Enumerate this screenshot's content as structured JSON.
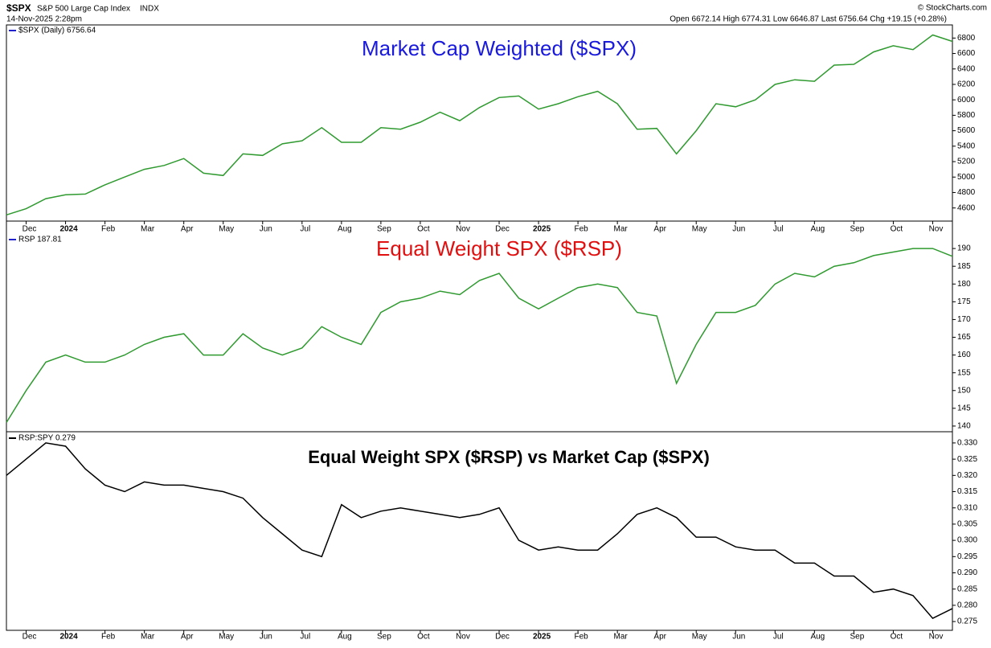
{
  "header": {
    "symbol": "$SPX",
    "name": "S&P 500 Large Cap Index",
    "exchange": "INDX",
    "date": "14-Nov-2025 2:28pm",
    "quote": "Open 6672.14 High 6774.31 Low 6646.87 Last 6756.64 Chg +19.15 (+0.28%)",
    "source": "© StockCharts.com"
  },
  "chart_data": [
    {
      "type": "line",
      "title": "Market Cap Weighted ($SPX)",
      "title_color": "#1a1adc",
      "categories": [
        null,
        "Dec",
        null,
        "2024",
        null,
        "Feb",
        null,
        "Mar",
        null,
        "Apr",
        null,
        "May",
        null,
        "Jun",
        null,
        "Jul",
        null,
        "Aug",
        null,
        "Sep",
        null,
        "Oct",
        null,
        "Nov",
        null,
        "Dec",
        null,
        "2025",
        null,
        "Feb",
        null,
        "Mar",
        null,
        "Apr",
        null,
        "May",
        null,
        "Jun",
        null,
        "Jul",
        null,
        "Aug",
        null,
        "Sep",
        null,
        "Oct",
        null,
        "Nov",
        null
      ],
      "series": [
        {
          "name": "$SPX (Daily) 6756.64",
          "color": "#2f9a2f",
          "values": [
            4510,
            4590,
            4720,
            4770,
            4780,
            4900,
            5000,
            5100,
            5150,
            5240,
            5050,
            5020,
            5300,
            5280,
            5430,
            5470,
            5640,
            5450,
            5450,
            5640,
            5620,
            5710,
            5840,
            5730,
            5900,
            6030,
            6050,
            5880,
            5950,
            6040,
            6110,
            5950,
            5620,
            5630,
            5300,
            5600,
            5950,
            5910,
            6000,
            6200,
            6260,
            6240,
            6450,
            6460,
            6620,
            6700,
            6650,
            6840,
            6757
          ]
        }
      ],
      "ylim": [
        4430,
        6970
      ],
      "yticks": [
        4600,
        4800,
        5000,
        5200,
        5400,
        5600,
        5800,
        6000,
        6200,
        6400,
        6600,
        6800
      ]
    },
    {
      "type": "line",
      "title": "Equal Weight SPX ($RSP)",
      "title_color": "#e01010",
      "series": [
        {
          "name": "RSP 187.81",
          "color": "#2f9a2f",
          "values": [
            141,
            150,
            158,
            160,
            158,
            158,
            160,
            163,
            165,
            166,
            160,
            160,
            166,
            162,
            160,
            162,
            168,
            165,
            163,
            172,
            175,
            176,
            178,
            177,
            181,
            183,
            176,
            173,
            176,
            179,
            180,
            179,
            172,
            171,
            152,
            163,
            172,
            172,
            174,
            180,
            183,
            182,
            185,
            186,
            188,
            189,
            190,
            190,
            187.81
          ]
        }
      ],
      "ylim": [
        138.4,
        194.1
      ],
      "yticks": [
        140,
        145,
        150,
        155,
        160,
        165,
        170,
        175,
        180,
        185,
        190
      ]
    },
    {
      "type": "line",
      "title": "Equal Weight SPX ($RSP) vs Market Cap ($SPX)",
      "title_color": "#000000",
      "categories": [
        null,
        "Dec",
        null,
        "2024",
        null,
        "Feb",
        null,
        "Mar",
        null,
        "Apr",
        null,
        "May",
        null,
        "Jun",
        null,
        "Jul",
        null,
        "Aug",
        null,
        "Sep",
        null,
        "Oct",
        null,
        "Nov",
        null,
        "Dec",
        null,
        "2025",
        null,
        "Feb",
        null,
        "Mar",
        null,
        "Apr",
        null,
        "May",
        null,
        "Jun",
        null,
        "Jul",
        null,
        "Aug",
        null,
        "Sep",
        null,
        "Oct",
        null,
        "Nov",
        null
      ],
      "series": [
        {
          "name": "RSP:SPY 0.279",
          "color": "#000000",
          "values": [
            0.32,
            0.325,
            0.33,
            0.329,
            0.322,
            0.317,
            0.315,
            0.318,
            0.317,
            0.317,
            0.316,
            0.315,
            0.313,
            0.307,
            0.302,
            0.297,
            0.295,
            0.311,
            0.307,
            0.309,
            0.31,
            0.309,
            0.308,
            0.307,
            0.308,
            0.31,
            0.3,
            0.297,
            0.298,
            0.297,
            0.297,
            0.302,
            0.308,
            0.31,
            0.307,
            0.301,
            0.301,
            0.298,
            0.297,
            0.297,
            0.293,
            0.293,
            0.289,
            0.289,
            0.284,
            0.285,
            0.283,
            0.276,
            0.279
          ]
        }
      ],
      "ylim": [
        0.2723,
        0.3332
      ],
      "yticks": [
        0.275,
        {
          "value": 0.28,
          "label": "0.280"
        },
        0.285,
        {
          "value": 0.29,
          "label": "0.290"
        },
        0.295,
        {
          "value": 0.3,
          "label": "0.300"
        },
        0.305,
        {
          "value": 0.31,
          "label": "0.310"
        },
        0.315,
        {
          "value": 0.32,
          "label": "0.320"
        },
        0.325,
        {
          "value": 0.33,
          "label": "0.330"
        }
      ]
    }
  ]
}
